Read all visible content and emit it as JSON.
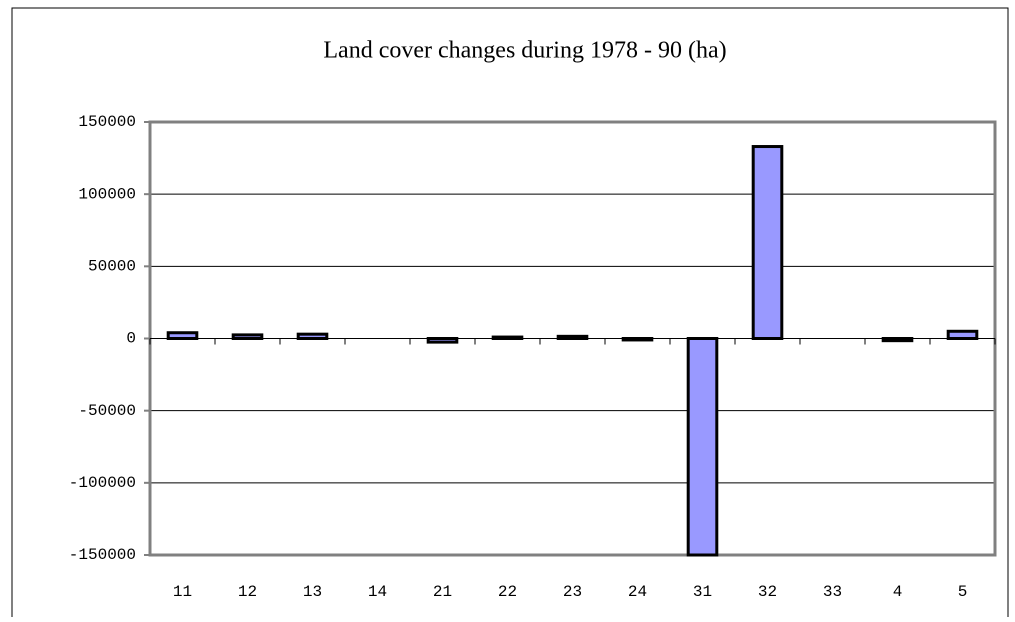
{
  "chart_data": {
    "type": "bar",
    "title": "Land cover changes during 1978 - 90 (ha)",
    "categories": [
      "11",
      "12",
      "13",
      "14",
      "21",
      "22",
      "23",
      "24",
      "31",
      "32",
      "33",
      "4",
      "5"
    ],
    "values": [
      4000,
      2500,
      3000,
      0,
      -2500,
      1000,
      1500,
      -1000,
      -150000,
      133000,
      0,
      -1500,
      5000
    ],
    "color": "#9999ff",
    "ylim": [
      -150000,
      150000
    ],
    "yticks": [
      -150000,
      -100000,
      -50000,
      0,
      50000,
      100000,
      150000
    ],
    "grid": true
  }
}
